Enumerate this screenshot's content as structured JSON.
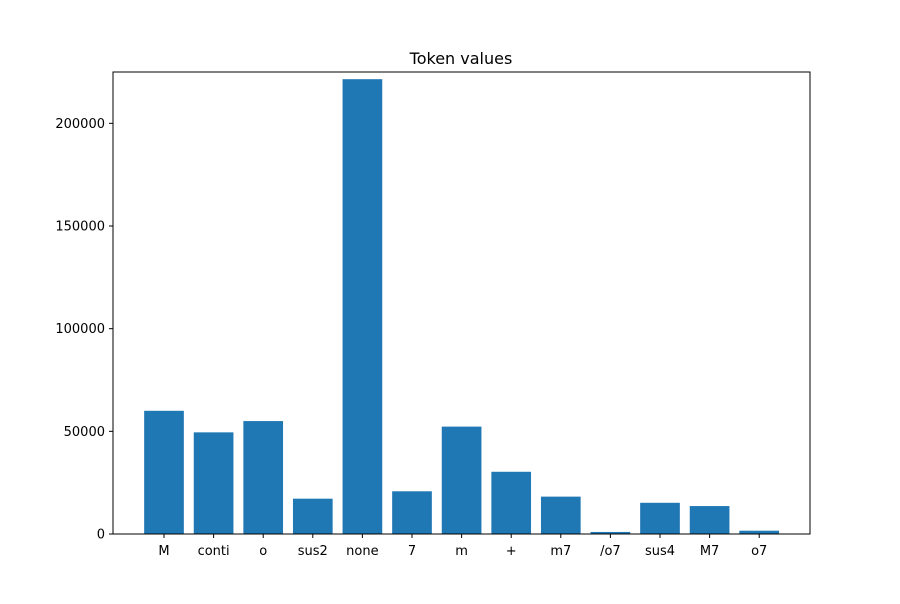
{
  "chart_data": {
    "type": "bar",
    "title": "Token values",
    "xlabel": "",
    "ylabel": "",
    "categories": [
      "M",
      "conti",
      "o",
      "sus2",
      "none",
      "7",
      "m",
      "+",
      "m7",
      "/o7",
      "sus4",
      "M7",
      "o7"
    ],
    "values": [
      60000,
      49500,
      55000,
      17200,
      221500,
      20800,
      52300,
      30300,
      18200,
      1000,
      15200,
      13600,
      1600
    ],
    "ylim": [
      0,
      225000
    ],
    "yticks": [
      0,
      50000,
      100000,
      150000,
      200000
    ],
    "grid": false,
    "legend": "none",
    "colors": {
      "bar": "#1f77b4",
      "axis": "#000000",
      "background": "#ffffff"
    }
  }
}
